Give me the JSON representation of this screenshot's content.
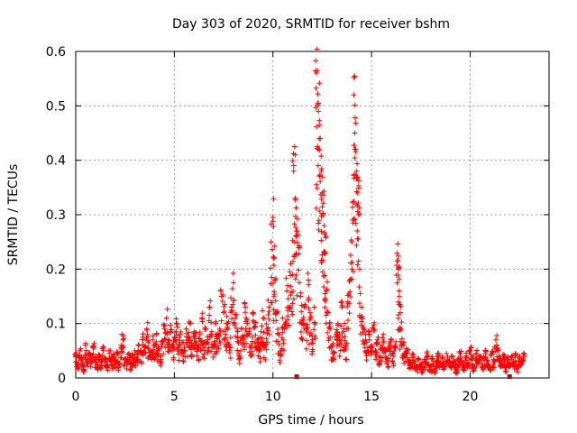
{
  "chart_data": {
    "type": "scatter",
    "title": "Day 303 of 2020, SRMTID for receiver bshm",
    "xlabel": "GPS time / hours",
    "ylabel": "SRMTID / TECUs",
    "xlim": [
      0,
      24
    ],
    "ylim": [
      0,
      0.6
    ],
    "xticks": [
      "0",
      "5",
      "10",
      "15",
      "20"
    ],
    "yticks": [
      "0",
      "0.1",
      "0.2",
      "0.3",
      "0.4",
      "0.5",
      "0.6"
    ],
    "grid": true,
    "marker": "plus",
    "color": "#ff0000",
    "zero_flags_x": [
      11.2,
      22.0
    ],
    "series": [
      {
        "name": "SRMTID",
        "points": [
          [
            0.0,
            0.04
          ],
          [
            0.1,
            0.025
          ],
          [
            0.2,
            0.05
          ],
          [
            0.3,
            0.035
          ],
          [
            0.4,
            0.02
          ],
          [
            0.5,
            0.06
          ],
          [
            0.6,
            0.03
          ],
          [
            0.7,
            0.045
          ],
          [
            0.8,
            0.03
          ],
          [
            0.9,
            0.055
          ],
          [
            1.0,
            0.035
          ],
          [
            1.1,
            0.025
          ],
          [
            1.2,
            0.04
          ],
          [
            1.3,
            0.03
          ],
          [
            1.4,
            0.05
          ],
          [
            1.5,
            0.035
          ],
          [
            1.6,
            0.025
          ],
          [
            1.7,
            0.045
          ],
          [
            1.8,
            0.03
          ],
          [
            1.9,
            0.04
          ],
          [
            2.0,
            0.03
          ],
          [
            2.1,
            0.045
          ],
          [
            2.2,
            0.025
          ],
          [
            2.3,
            0.06
          ],
          [
            2.4,
            0.07
          ],
          [
            2.5,
            0.035
          ],
          [
            2.6,
            0.03
          ],
          [
            2.7,
            0.045
          ],
          [
            2.8,
            0.025
          ],
          [
            2.9,
            0.04
          ],
          [
            3.0,
            0.05
          ],
          [
            3.1,
            0.035
          ],
          [
            3.2,
            0.06
          ],
          [
            3.3,
            0.045
          ],
          [
            3.4,
            0.075
          ],
          [
            3.5,
            0.055
          ],
          [
            3.6,
            0.09
          ],
          [
            3.7,
            0.065
          ],
          [
            3.8,
            0.05
          ],
          [
            3.9,
            0.07
          ],
          [
            4.0,
            0.06
          ],
          [
            4.1,
            0.08
          ],
          [
            4.2,
            0.05
          ],
          [
            4.3,
            0.04
          ],
          [
            4.4,
            0.065
          ],
          [
            4.5,
            0.09
          ],
          [
            4.6,
            0.11
          ],
          [
            4.7,
            0.07
          ],
          [
            4.8,
            0.085
          ],
          [
            4.9,
            0.06
          ],
          [
            5.0,
            0.075
          ],
          [
            5.1,
            0.1
          ],
          [
            5.2,
            0.055
          ],
          [
            5.3,
            0.08
          ],
          [
            5.4,
            0.065
          ],
          [
            5.5,
            0.05
          ],
          [
            5.6,
            0.09
          ],
          [
            5.7,
            0.07
          ],
          [
            5.8,
            0.1
          ],
          [
            5.9,
            0.06
          ],
          [
            6.0,
            0.085
          ],
          [
            6.1,
            0.075
          ],
          [
            6.2,
            0.055
          ],
          [
            6.3,
            0.08
          ],
          [
            6.4,
            0.11
          ],
          [
            6.5,
            0.065
          ],
          [
            6.6,
            0.09
          ],
          [
            6.7,
            0.07
          ],
          [
            6.8,
            0.13
          ],
          [
            6.9,
            0.085
          ],
          [
            7.0,
            0.06
          ],
          [
            7.1,
            0.1
          ],
          [
            7.2,
            0.075
          ],
          [
            7.3,
            0.09
          ],
          [
            7.4,
            0.15
          ],
          [
            7.5,
            0.12
          ],
          [
            7.6,
            0.08
          ],
          [
            7.7,
            0.1
          ],
          [
            7.8,
            0.06
          ],
          [
            7.9,
            0.13
          ],
          [
            8.0,
            0.175
          ],
          [
            8.1,
            0.11
          ],
          [
            8.2,
            0.085
          ],
          [
            8.3,
            0.04
          ],
          [
            8.4,
            0.09
          ],
          [
            8.5,
            0.07
          ],
          [
            8.6,
            0.13
          ],
          [
            8.7,
            0.1
          ],
          [
            8.8,
            0.08
          ],
          [
            8.9,
            0.06
          ],
          [
            9.0,
            0.12
          ],
          [
            9.1,
            0.095
          ],
          [
            9.2,
            0.07
          ],
          [
            9.3,
            0.05
          ],
          [
            9.4,
            0.085
          ],
          [
            9.5,
            0.11
          ],
          [
            9.6,
            0.06
          ],
          [
            9.7,
            0.09
          ],
          [
            9.8,
            0.13
          ],
          [
            9.9,
            0.25
          ],
          [
            10.0,
            0.295
          ],
          [
            10.05,
            0.22
          ],
          [
            10.1,
            0.18
          ],
          [
            10.2,
            0.12
          ],
          [
            10.3,
            0.08
          ],
          [
            10.4,
            0.05
          ],
          [
            10.5,
            0.11
          ],
          [
            10.6,
            0.09
          ],
          [
            10.7,
            0.16
          ],
          [
            10.8,
            0.13
          ],
          [
            10.9,
            0.21
          ],
          [
            11.0,
            0.19
          ],
          [
            11.05,
            0.38
          ],
          [
            11.1,
            0.425
          ],
          [
            11.15,
            0.33
          ],
          [
            11.2,
            0.27
          ],
          [
            11.3,
            0.24
          ],
          [
            11.4,
            0.15
          ],
          [
            11.5,
            0.1
          ],
          [
            11.6,
            0.13
          ],
          [
            11.7,
            0.09
          ],
          [
            11.8,
            0.18
          ],
          [
            11.9,
            0.11
          ],
          [
            12.0,
            0.07
          ],
          [
            12.1,
            0.13
          ],
          [
            12.2,
            0.56
          ],
          [
            12.25,
            0.565
          ],
          [
            12.3,
            0.505
          ],
          [
            12.35,
            0.465
          ],
          [
            12.4,
            0.44
          ],
          [
            12.45,
            0.38
          ],
          [
            12.5,
            0.34
          ],
          [
            12.55,
            0.3
          ],
          [
            12.6,
            0.28
          ],
          [
            12.65,
            0.23
          ],
          [
            12.7,
            0.16
          ],
          [
            12.8,
            0.12
          ],
          [
            12.9,
            0.09
          ],
          [
            13.0,
            0.06
          ],
          [
            13.1,
            0.045
          ],
          [
            13.2,
            0.08
          ],
          [
            13.3,
            0.1
          ],
          [
            13.4,
            0.07
          ],
          [
            13.5,
            0.13
          ],
          [
            13.6,
            0.09
          ],
          [
            13.7,
            0.06
          ],
          [
            13.8,
            0.14
          ],
          [
            13.9,
            0.18
          ],
          [
            14.0,
            0.25
          ],
          [
            14.05,
            0.29
          ],
          [
            14.1,
            0.52
          ],
          [
            14.15,
            0.45
          ],
          [
            14.2,
            0.42
          ],
          [
            14.25,
            0.38
          ],
          [
            14.3,
            0.34
          ],
          [
            14.35,
            0.3
          ],
          [
            14.4,
            0.2
          ],
          [
            14.5,
            0.13
          ],
          [
            14.6,
            0.09
          ],
          [
            14.7,
            0.07
          ],
          [
            14.8,
            0.05
          ],
          [
            14.9,
            0.08
          ],
          [
            15.0,
            0.06
          ],
          [
            15.1,
            0.09
          ],
          [
            15.2,
            0.05
          ],
          [
            15.3,
            0.07
          ],
          [
            15.4,
            0.04
          ],
          [
            15.5,
            0.06
          ],
          [
            15.6,
            0.08
          ],
          [
            15.7,
            0.05
          ],
          [
            15.8,
            0.035
          ],
          [
            15.9,
            0.055
          ],
          [
            16.0,
            0.07
          ],
          [
            16.1,
            0.04
          ],
          [
            16.2,
            0.06
          ],
          [
            16.3,
            0.215
          ],
          [
            16.35,
            0.2
          ],
          [
            16.4,
            0.16
          ],
          [
            16.45,
            0.12
          ],
          [
            16.5,
            0.09
          ],
          [
            16.6,
            0.06
          ],
          [
            16.7,
            0.04
          ],
          [
            16.8,
            0.05
          ],
          [
            16.9,
            0.03
          ],
          [
            17.0,
            0.025
          ],
          [
            17.1,
            0.04
          ],
          [
            17.2,
            0.03
          ],
          [
            17.3,
            0.02
          ],
          [
            17.4,
            0.035
          ],
          [
            17.5,
            0.025
          ],
          [
            17.6,
            0.015
          ],
          [
            17.7,
            0.03
          ],
          [
            17.8,
            0.045
          ],
          [
            17.9,
            0.025
          ],
          [
            18.0,
            0.02
          ],
          [
            18.1,
            0.035
          ],
          [
            18.2,
            0.015
          ],
          [
            18.3,
            0.03
          ],
          [
            18.4,
            0.04
          ],
          [
            18.5,
            0.025
          ],
          [
            18.6,
            0.035
          ],
          [
            18.7,
            0.02
          ],
          [
            18.8,
            0.045
          ],
          [
            18.9,
            0.03
          ],
          [
            19.0,
            0.025
          ],
          [
            19.1,
            0.04
          ],
          [
            19.2,
            0.03
          ],
          [
            19.3,
            0.015
          ],
          [
            19.4,
            0.035
          ],
          [
            19.5,
            0.045
          ],
          [
            19.6,
            0.03
          ],
          [
            19.7,
            0.02
          ],
          [
            19.8,
            0.04
          ],
          [
            19.9,
            0.025
          ],
          [
            20.0,
            0.05
          ],
          [
            20.1,
            0.035
          ],
          [
            20.2,
            0.02
          ],
          [
            20.3,
            0.045
          ],
          [
            20.4,
            0.03
          ],
          [
            20.5,
            0.04
          ],
          [
            20.6,
            0.025
          ],
          [
            20.7,
            0.035
          ],
          [
            20.8,
            0.05
          ],
          [
            20.9,
            0.03
          ],
          [
            21.0,
            0.02
          ],
          [
            21.1,
            0.045
          ],
          [
            21.2,
            0.03
          ],
          [
            21.3,
            0.07
          ],
          [
            21.4,
            0.05
          ],
          [
            21.5,
            0.035
          ],
          [
            21.6,
            0.025
          ],
          [
            21.7,
            0.04
          ],
          [
            21.8,
            0.02
          ],
          [
            21.9,
            0.035
          ],
          [
            22.0,
            0.025
          ],
          [
            22.1,
            0.04
          ],
          [
            22.2,
            0.03
          ],
          [
            22.3,
            0.045
          ],
          [
            22.4,
            0.02
          ],
          [
            22.5,
            0.035
          ],
          [
            22.6,
            0.03
          ],
          [
            22.7,
            0.04
          ]
        ]
      }
    ]
  }
}
